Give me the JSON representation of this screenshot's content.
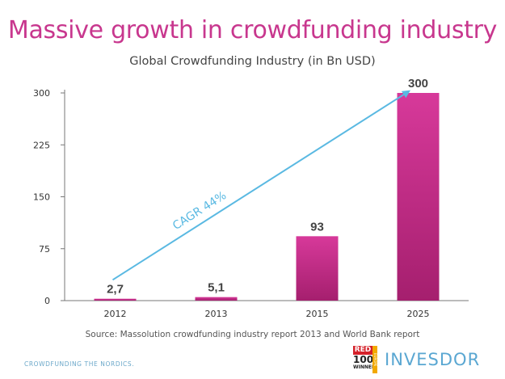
{
  "slide": {
    "title": "Massive growth in crowdfunding industry",
    "source": "Source: Massolution crowdfunding industry report 2013 and World Bank report",
    "footer_tagline": "CROWDFUNDING THE NORDICS.",
    "badge_red": "RED",
    "badge_hundred": "100",
    "badge_winner": "WINNER",
    "badge_europe": "EUROPE",
    "logo_text": "INVESDOR"
  },
  "chart_data": {
    "type": "bar",
    "title": "Global Crowdfunding Industry (in Bn USD)",
    "categories": [
      "2012",
      "2013",
      "2015",
      "2025"
    ],
    "values": [
      2.7,
      5.1,
      93,
      300
    ],
    "data_labels": [
      "2,7",
      "5,1",
      "93",
      "300"
    ],
    "yticks": [
      "0",
      "75",
      "150",
      "225",
      "300"
    ],
    "ylim": [
      0,
      300
    ],
    "grid": false,
    "annotation": "CAGR 44%",
    "colors": {
      "bar_top": "#d7399a",
      "bar_bottom": "#a51f6e",
      "arrow": "#5ab9e2"
    }
  }
}
